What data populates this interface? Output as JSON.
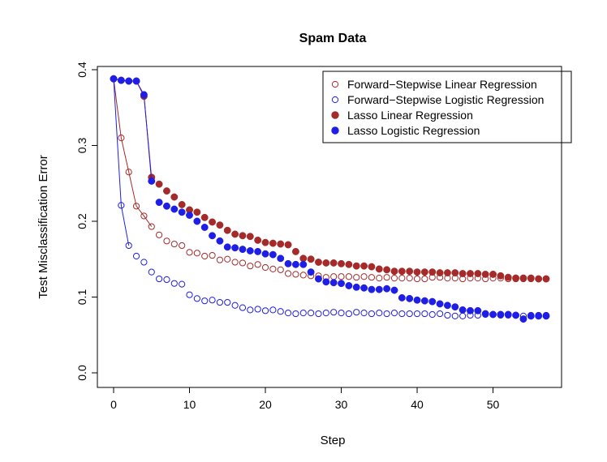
{
  "chart_data": {
    "type": "scatter",
    "title": "Spam Data",
    "xlabel": "Step",
    "ylabel": "Test Misclassification Error",
    "xlim": [
      0,
      57
    ],
    "ylim": [
      0,
      0.4
    ],
    "x_ticks": [
      0,
      10,
      20,
      30,
      40,
      50
    ],
    "x_tick_labels": [
      "0",
      "10",
      "20",
      "30",
      "40",
      "50"
    ],
    "y_ticks": [
      0.0,
      0.1,
      0.2,
      0.3,
      0.4
    ],
    "y_tick_labels": [
      "0.0",
      "0.1",
      "0.2",
      "0.3",
      "0.4"
    ],
    "grid": false,
    "legend_position": "top-right",
    "series": [
      {
        "name": "Forward−Stepwise Linear Regression",
        "color": "#a52a2a",
        "marker": "open-circle",
        "x": [
          0,
          1,
          2,
          3,
          4,
          5,
          6,
          7,
          8,
          9,
          10,
          11,
          12,
          13,
          14,
          15,
          16,
          17,
          18,
          19,
          20,
          21,
          22,
          23,
          24,
          25,
          26,
          27,
          28,
          29,
          30,
          31,
          32,
          33,
          34,
          35,
          36,
          37,
          38,
          39,
          40,
          41,
          42,
          43,
          44,
          45,
          46,
          47,
          48,
          49,
          50,
          51,
          52,
          53,
          54,
          55,
          56,
          57
        ],
        "values": [
          0.388,
          0.31,
          0.265,
          0.22,
          0.207,
          0.193,
          0.182,
          0.174,
          0.17,
          0.168,
          0.159,
          0.158,
          0.154,
          0.155,
          0.149,
          0.15,
          0.146,
          0.145,
          0.141,
          0.143,
          0.139,
          0.137,
          0.136,
          0.131,
          0.13,
          0.129,
          0.128,
          0.128,
          0.126,
          0.127,
          0.127,
          0.127,
          0.126,
          0.127,
          0.126,
          0.125,
          0.126,
          0.125,
          0.125,
          0.125,
          0.124,
          0.124,
          0.126,
          0.126,
          0.125,
          0.125,
          0.124,
          0.125,
          0.125,
          0.124,
          0.125,
          0.125,
          0.124,
          0.124,
          0.124,
          0.124,
          0.124,
          0.124
        ],
        "connected_to_step": 5
      },
      {
        "name": "Forward−Stepwise Logistic Regression",
        "color": "#1e1ee6",
        "marker": "open-circle",
        "x": [
          0,
          1,
          2,
          3,
          4,
          5,
          6,
          7,
          8,
          9,
          10,
          11,
          12,
          13,
          14,
          15,
          16,
          17,
          18,
          19,
          20,
          21,
          22,
          23,
          24,
          25,
          26,
          27,
          28,
          29,
          30,
          31,
          32,
          33,
          34,
          35,
          36,
          37,
          38,
          39,
          40,
          41,
          42,
          43,
          44,
          45,
          46,
          47,
          48,
          49,
          50,
          51,
          52,
          53,
          54,
          55,
          56,
          57
        ],
        "values": [
          0.388,
          0.221,
          0.168,
          0.154,
          0.146,
          0.133,
          0.124,
          0.123,
          0.118,
          0.117,
          0.103,
          0.098,
          0.095,
          0.096,
          0.093,
          0.093,
          0.089,
          0.086,
          0.083,
          0.084,
          0.082,
          0.083,
          0.081,
          0.079,
          0.078,
          0.079,
          0.079,
          0.078,
          0.079,
          0.08,
          0.079,
          0.078,
          0.08,
          0.079,
          0.078,
          0.079,
          0.078,
          0.079,
          0.078,
          0.078,
          0.078,
          0.078,
          0.077,
          0.078,
          0.076,
          0.075,
          0.075,
          0.076,
          0.076,
          0.077,
          0.077,
          0.076,
          0.076,
          0.076,
          0.075,
          0.076,
          0.076,
          0.076
        ],
        "connected_to_step": 2
      },
      {
        "name": "Lasso Linear Regression",
        "color": "#a52a2a",
        "marker": "filled-circle",
        "x": [
          0,
          1,
          2,
          3,
          4,
          5,
          6,
          7,
          8,
          9,
          10,
          11,
          12,
          13,
          14,
          15,
          16,
          17,
          18,
          19,
          20,
          21,
          22,
          23,
          24,
          25,
          26,
          27,
          28,
          29,
          30,
          31,
          32,
          33,
          34,
          35,
          36,
          37,
          38,
          39,
          40,
          41,
          42,
          43,
          44,
          45,
          46,
          47,
          48,
          49,
          50,
          51,
          52,
          53,
          54,
          55,
          56,
          57
        ],
        "values": [
          0.388,
          0.386,
          0.385,
          0.385,
          0.365,
          0.258,
          0.249,
          0.24,
          0.232,
          0.222,
          0.215,
          0.212,
          0.205,
          0.199,
          0.195,
          0.188,
          0.183,
          0.181,
          0.18,
          0.175,
          0.172,
          0.171,
          0.17,
          0.169,
          0.16,
          0.151,
          0.15,
          0.146,
          0.145,
          0.145,
          0.144,
          0.143,
          0.141,
          0.141,
          0.14,
          0.137,
          0.136,
          0.134,
          0.134,
          0.134,
          0.133,
          0.133,
          0.133,
          0.132,
          0.132,
          0.132,
          0.131,
          0.131,
          0.131,
          0.13,
          0.13,
          0.128,
          0.126,
          0.125,
          0.125,
          0.125,
          0.124,
          0.124
        ],
        "connected_to_step": 5
      },
      {
        "name": "Lasso Logistic Regression",
        "color": "#1e1ee6",
        "marker": "filled-circle",
        "x": [
          0,
          1,
          2,
          3,
          4,
          5,
          6,
          7,
          8,
          9,
          10,
          11,
          12,
          13,
          14,
          15,
          16,
          17,
          18,
          19,
          20,
          21,
          22,
          23,
          24,
          25,
          26,
          27,
          28,
          29,
          30,
          31,
          32,
          33,
          34,
          35,
          36,
          37,
          38,
          39,
          40,
          41,
          42,
          43,
          44,
          45,
          46,
          47,
          48,
          49,
          50,
          51,
          52,
          53,
          54,
          55,
          56,
          57
        ],
        "values": [
          0.388,
          0.386,
          0.385,
          0.385,
          0.367,
          0.253,
          0.225,
          0.22,
          0.216,
          0.212,
          0.208,
          0.2,
          0.192,
          0.181,
          0.174,
          0.166,
          0.165,
          0.163,
          0.161,
          0.16,
          0.157,
          0.156,
          0.151,
          0.144,
          0.143,
          0.143,
          0.133,
          0.124,
          0.12,
          0.119,
          0.118,
          0.115,
          0.113,
          0.112,
          0.11,
          0.11,
          0.111,
          0.109,
          0.099,
          0.098,
          0.096,
          0.095,
          0.094,
          0.091,
          0.089,
          0.087,
          0.083,
          0.082,
          0.082,
          0.078,
          0.077,
          0.077,
          0.077,
          0.076,
          0.071,
          0.075,
          0.075,
          0.075
        ],
        "connected_to_step": 5
      }
    ]
  }
}
